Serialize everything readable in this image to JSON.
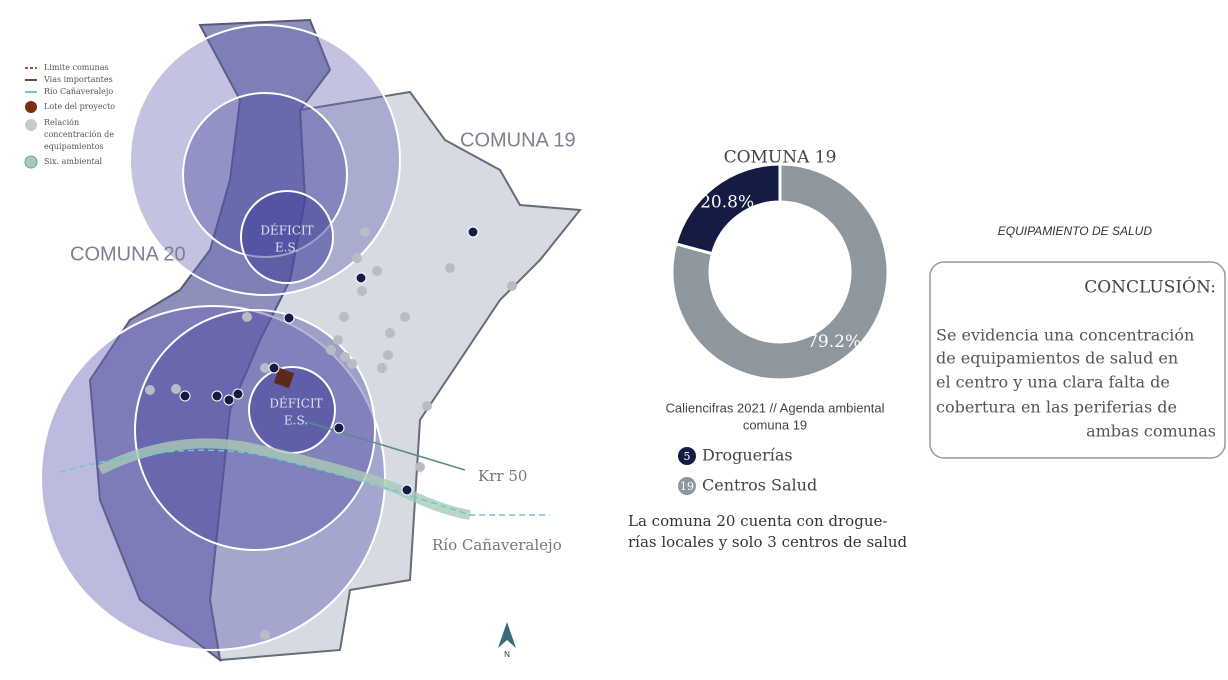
{
  "legend": [
    "Limite comunas",
    "Vias importantes",
    "Río Cañaveralejo",
    "Lote del proyecto",
    "Relación",
    "concentración de",
    "equipamientos",
    "Six. ambiental"
  ],
  "map": {
    "labels": [
      "COMUNA 19",
      "COMUNA 20",
      "Krr 50",
      "Río Cañaveralejo"
    ],
    "deficit": [
      [
        "DÉFICIT",
        "E.S."
      ],
      [
        "DÉFICIT",
        "E.S."
      ]
    ],
    "north": "N"
  },
  "chart_data": {
    "type": "pie",
    "title": "COMUNA 19",
    "categories": [
      "Droguerías",
      "Centros Salud"
    ],
    "values": [
      20.8,
      79.2
    ],
    "value_labels": [
      "20.8%",
      "79.2%"
    ],
    "colors": [
      "#141c44",
      "#8e979e"
    ],
    "counts": [
      5,
      19
    ],
    "source": [
      "Caliencifras 2021 // Agenda ambiental",
      "comuna 19"
    ]
  },
  "side_note": [
    "La comuna 20 cuenta con drogue-",
    "rías locales y solo 3 centros de salud"
  ],
  "conclusion": {
    "section": "EQUIPAMIENTO DE SALUD",
    "title": "CONCLUSIÓN:",
    "lines": [
      "Se evidencia una concentración",
      "de equipamientos de salud en",
      "el centro y una clara falta de",
      "cobertura en las periferias  de",
      "ambas comunas"
    ]
  }
}
